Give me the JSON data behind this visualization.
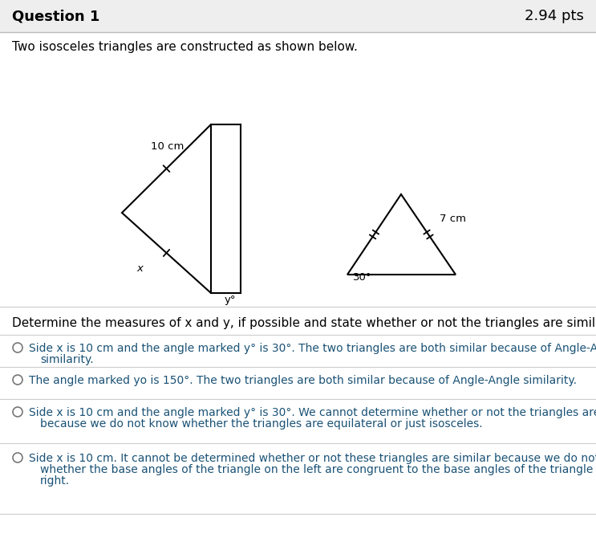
{
  "title": "Question 1",
  "pts": "2.94 pts",
  "header_bg": "#eeeeee",
  "problem_text": "Two isosceles triangles are constructed as shown below.",
  "question_text": "Determine the measures of x and y, if possible and state whether or not the triangles are similar.",
  "option1_line1": "Side x is 10 cm and the angle marked y° is 30°. The two triangles are both similar because of Angle-Angle",
  "option1_line2": "similarity.",
  "option2": "The angle marked yo is 150°. The two triangles are both similar because of Angle-Angle similarity.",
  "option3_line1": "Side x is 10 cm and the angle marked y° is 30°. We cannot determine whether or not the triangles are similar",
  "option3_line2": "because we do not know whether the triangles are equilateral or just isosceles.",
  "option4_line1": "Side x is 10 cm. It cannot be determined whether or not these triangles are similar because we do not know",
  "option4_line2": "whether the base angles of the triangle on the left are congruent to the base angles of the triangle on the",
  "option4_line3": "right.",
  "text_color": "#1a5276",
  "line_color": "#000000",
  "bg_color": "#ffffff",
  "divider_color": "#cccccc",
  "header_divider": "#bbbbbb"
}
